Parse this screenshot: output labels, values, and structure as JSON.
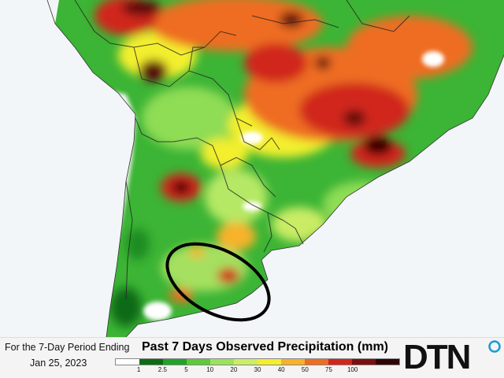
{
  "period": {
    "line1": "For the 7-Day Period Ending",
    "line2": "Jan 25, 2023"
  },
  "legend": {
    "title": "Past 7 Days Observed Precipitation (mm)",
    "colors": [
      "#ffffff",
      "#0f6a16",
      "#22a22a",
      "#5fc93a",
      "#9be35a",
      "#ccee66",
      "#f3ef2d",
      "#f7b22a",
      "#ee6d22",
      "#d0261b",
      "#7a0f10",
      "#2e0606"
    ],
    "labels": [
      "1",
      "2.5",
      "5",
      "10",
      "20",
      "30",
      "40",
      "50",
      "75",
      "100"
    ]
  },
  "brand": {
    "name": "DTN",
    "accent": "#1a9bd7"
  },
  "colors": {
    "ocean": "#f3f6f9",
    "land_dry": "#ffffff",
    "border": "#222222",
    "highlight_ring": "#000000"
  }
}
